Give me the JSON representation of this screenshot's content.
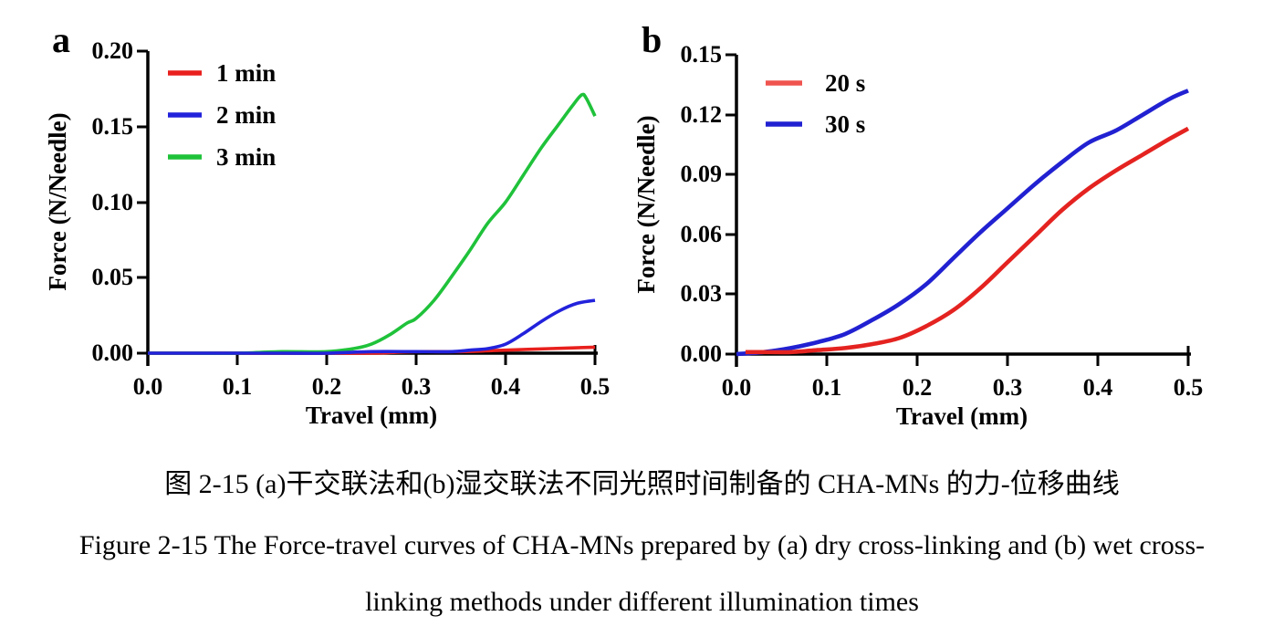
{
  "figure": {
    "caption_zh": "图 2-15 (a)干交联法和(b)湿交联法不同光照时间制备的 CHA-MNs 的力-位移曲线",
    "caption_en_line1": "Figure 2-15 The Force-travel curves of CHA-MNs prepared by (a) dry cross-linking and (b) wet cross-",
    "caption_en_line2": "linking methods under different illumination times"
  },
  "chart_data": [
    {
      "type": "line",
      "panel_label": "a",
      "title": "",
      "xlabel": "Travel (mm)",
      "ylabel": "Force (N/Needle)",
      "xlim": [
        0.0,
        0.5
      ],
      "ylim": [
        0.0,
        0.2
      ],
      "x_tick_labels": [
        "0.0",
        "0.1",
        "0.2",
        "0.3",
        "0.4",
        "0.5"
      ],
      "y_tick_labels": [
        "0.00",
        "0.05",
        "0.10",
        "0.15",
        "0.20"
      ],
      "grid": false,
      "legend_position": "top-left",
      "series": [
        {
          "name": "1 min",
          "color": "#e8201d",
          "legend_color": "#e8201d",
          "x": [
            0,
            0.05,
            0.1,
            0.15,
            0.2,
            0.25,
            0.3,
            0.35,
            0.4,
            0.45,
            0.5
          ],
          "y": [
            0,
            0,
            0,
            0,
            0,
            0,
            0.001,
            0.001,
            0.002,
            0.003,
            0.004
          ]
        },
        {
          "name": "2 min",
          "color": "#2222dc",
          "legend_color": "#2222dc",
          "x": [
            0,
            0.05,
            0.1,
            0.15,
            0.2,
            0.25,
            0.3,
            0.34,
            0.36,
            0.38,
            0.4,
            0.42,
            0.44,
            0.46,
            0.48,
            0.5
          ],
          "y": [
            0,
            0,
            0,
            0,
            0,
            0.001,
            0.001,
            0.001,
            0.002,
            0.003,
            0.006,
            0.013,
            0.021,
            0.028,
            0.033,
            0.035
          ]
        },
        {
          "name": "3 min",
          "color": "#1fc23a",
          "legend_color": "#1fc23a",
          "x": [
            0,
            0.05,
            0.1,
            0.15,
            0.2,
            0.23,
            0.25,
            0.27,
            0.29,
            0.3,
            0.32,
            0.34,
            0.36,
            0.38,
            0.4,
            0.42,
            0.44,
            0.46,
            0.475,
            0.485,
            0.49,
            0.5
          ],
          "y": [
            0,
            0,
            0,
            0.001,
            0.001,
            0.003,
            0.006,
            0.012,
            0.02,
            0.023,
            0.035,
            0.051,
            0.068,
            0.086,
            0.1,
            0.118,
            0.136,
            0.152,
            0.164,
            0.171,
            0.169,
            0.157
          ]
        }
      ]
    },
    {
      "type": "line",
      "panel_label": "b",
      "title": "",
      "xlabel": "Travel (mm)",
      "ylabel": "Force (N/Needle)",
      "xlim": [
        0.0,
        0.5
      ],
      "ylim": [
        0.0,
        0.15
      ],
      "x_tick_labels": [
        "0.0",
        "0.1",
        "0.2",
        "0.3",
        "0.4",
        "0.5"
      ],
      "y_tick_labels": [
        "0.00",
        "0.03",
        "0.06",
        "0.09",
        "0.12",
        "0.15"
      ],
      "grid": false,
      "legend_position": "top-left",
      "series": [
        {
          "name": "20 s",
          "color": "#e42320",
          "legend_color": "#f0544f",
          "x": [
            0.01,
            0.03,
            0.06,
            0.09,
            0.12,
            0.15,
            0.18,
            0.21,
            0.24,
            0.27,
            0.3,
            0.33,
            0.36,
            0.39,
            0.42,
            0.45,
            0.48,
            0.5
          ],
          "y": [
            0.001,
            0.001,
            0.001,
            0.002,
            0.003,
            0.005,
            0.008,
            0.014,
            0.022,
            0.033,
            0.046,
            0.059,
            0.072,
            0.083,
            0.092,
            0.1,
            0.108,
            0.113
          ]
        },
        {
          "name": "30 s",
          "color": "#2121d2",
          "legend_color": "#2121d2",
          "x": [
            0,
            0.03,
            0.06,
            0.09,
            0.12,
            0.15,
            0.18,
            0.21,
            0.24,
            0.27,
            0.3,
            0.33,
            0.36,
            0.39,
            0.42,
            0.45,
            0.48,
            0.5
          ],
          "y": [
            0,
            0.001,
            0.003,
            0.006,
            0.01,
            0.017,
            0.025,
            0.035,
            0.048,
            0.061,
            0.073,
            0.085,
            0.096,
            0.106,
            0.112,
            0.12,
            0.128,
            0.132
          ]
        }
      ]
    }
  ]
}
